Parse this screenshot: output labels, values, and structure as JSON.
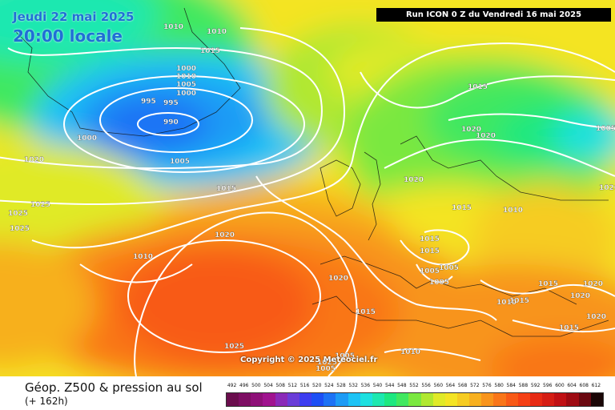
{
  "header": {
    "date": "Jeudi 22 mai 2025",
    "time": "20:00 locale",
    "run": "Run ICON 0 Z du Vendredi 16 mai 2025"
  },
  "copyright": "Copyright © 2025 Meteociel.fr",
  "footer": {
    "title": "Géop. Z500 & pression au sol",
    "subtitle": "(+ 162h)"
  },
  "scale": {
    "values": [
      "492",
      "496",
      "500",
      "504",
      "508",
      "512",
      "516",
      "520",
      "524",
      "528",
      "532",
      "536",
      "540",
      "544",
      "548",
      "552",
      "556",
      "560",
      "564",
      "568",
      "572",
      "576",
      "580",
      "584",
      "588",
      "592",
      "596",
      "600",
      "604",
      "608",
      "612"
    ],
    "colors": [
      "#6a0d4d",
      "#7d0e63",
      "#8e1078",
      "#a0138f",
      "#8a2ab8",
      "#6a3dd8",
      "#3d3df0",
      "#1c4ff5",
      "#1c72f5",
      "#1c9bf5",
      "#1cc3f5",
      "#1ce0e0",
      "#1ce8b0",
      "#1ce880",
      "#40e860",
      "#7ae840",
      "#b0e830",
      "#e0ea28",
      "#f4e424",
      "#f6cc22",
      "#f7b01f",
      "#f8941c",
      "#f97619",
      "#f85a17",
      "#f54015",
      "#e72a14",
      "#d51d14",
      "#c01014",
      "#9e0a12",
      "#6a0810",
      "#1a0606"
    ]
  },
  "isobars": [
    "1010",
    "1010",
    "1015",
    "1010",
    "1005",
    "1000",
    "995",
    "995",
    "990",
    "1000",
    "1000",
    "1005",
    "1020",
    "1025",
    "1025",
    "1025",
    "1015",
    "1020",
    "1010",
    "1025",
    "1020",
    "1020",
    "1020",
    "1020",
    "1015",
    "1010",
    "1005",
    "1015",
    "1015",
    "1005",
    "1005",
    "1005",
    "1020",
    "1015",
    "1015",
    "1020",
    "1015",
    "1020",
    "1010",
    "1015",
    "1015",
    "1020",
    "1010",
    "1005",
    "1005",
    "1025"
  ]
}
